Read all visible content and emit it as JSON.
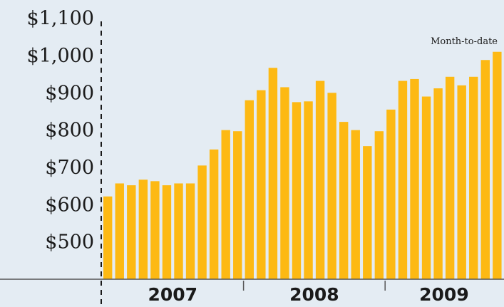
{
  "chart_data": {
    "type": "bar",
    "y_tick_labels": [
      "$1,100",
      "$1,000",
      "$900",
      "$800",
      "$700",
      "$600",
      "$500"
    ],
    "y_ticks": [
      1100,
      1000,
      900,
      800,
      700,
      600,
      500
    ],
    "ylim": [
      400,
      1100
    ],
    "x_group_labels": [
      "2007",
      "2008",
      "2009"
    ],
    "annotation": "Month-to-date",
    "bar_color": "#fdb913",
    "background_color": "#e4ecf3",
    "categories": [
      "2007-01",
      "2007-02",
      "2007-03",
      "2007-04",
      "2007-05",
      "2007-06",
      "2007-07",
      "2007-08",
      "2007-09",
      "2007-10",
      "2007-11",
      "2007-12",
      "2008-01",
      "2008-02",
      "2008-03",
      "2008-04",
      "2008-05",
      "2008-06",
      "2008-07",
      "2008-08",
      "2008-09",
      "2008-10",
      "2008-11",
      "2008-12",
      "2009-01",
      "2009-02",
      "2009-03",
      "2009-04",
      "2009-05",
      "2009-06",
      "2009-07",
      "2009-08",
      "2009-09",
      "2009-10"
    ],
    "values": [
      622,
      657,
      652,
      667,
      663,
      652,
      657,
      657,
      705,
      748,
      800,
      797,
      880,
      907,
      967,
      915,
      875,
      877,
      932,
      900,
      822,
      800,
      757,
      797,
      855,
      932,
      937,
      890,
      912,
      943,
      920,
      943,
      988,
      1010
    ]
  }
}
